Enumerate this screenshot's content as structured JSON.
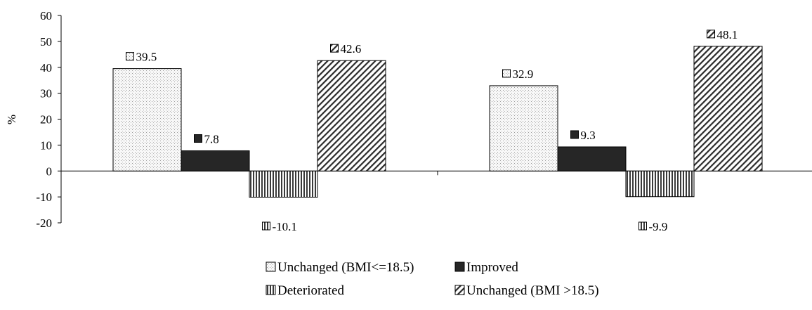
{
  "chart_data": {
    "type": "bar",
    "title": "",
    "xlabel": "",
    "ylabel": "%",
    "ylim": [
      -20,
      60
    ],
    "ytick_step": 10,
    "grid": false,
    "legend_placement": "bottom",
    "groups": 2,
    "series": [
      {
        "name": "Unchanged (BMI<=18.5)",
        "values": [
          39.5,
          32.9
        ],
        "pattern": "dots"
      },
      {
        "name": "Improved",
        "values": [
          7.8,
          9.3
        ],
        "pattern": "solid"
      },
      {
        "name": "Deteriorated",
        "values": [
          -10.1,
          -9.9
        ],
        "pattern": "vertical"
      },
      {
        "name": "Unchanged (BMI >18.5)",
        "values": [
          42.6,
          48.1
        ],
        "pattern": "diagonal"
      }
    ],
    "colors": {
      "solid": "#262626",
      "stroke": "#000000",
      "background": "#ffffff"
    }
  }
}
